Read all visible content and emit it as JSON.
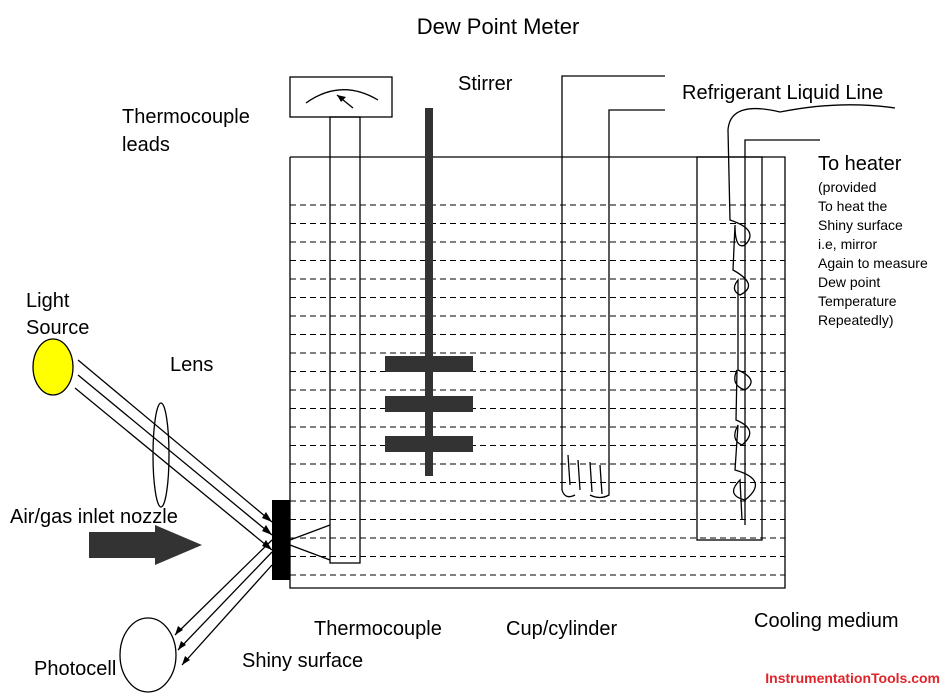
{
  "title": "Dew Point Meter",
  "labels": {
    "stirrer": "Stirrer",
    "thermocouple_leads": [
      "Thermocouple",
      "leads"
    ],
    "refrigerant": "Refrigerant Liquid Line",
    "to_heater": "To heater",
    "heater_note": [
      "(provided",
      "To heat the",
      "Shiny surface",
      "i.e, mirror",
      "Again to measure",
      "Dew point",
      "Temperature",
      "Repeatedly)"
    ],
    "light_source": [
      "Light",
      "Source"
    ],
    "lens": "Lens",
    "nozzle": "Air/gas inlet nozzle",
    "photocell": "Photocell",
    "shiny_surface": "Shiny surface",
    "thermocouple": "Thermocouple",
    "cup": "Cup/cylinder",
    "cooling": "Cooling medium"
  },
  "watermark": "InstrumentationTools.com"
}
